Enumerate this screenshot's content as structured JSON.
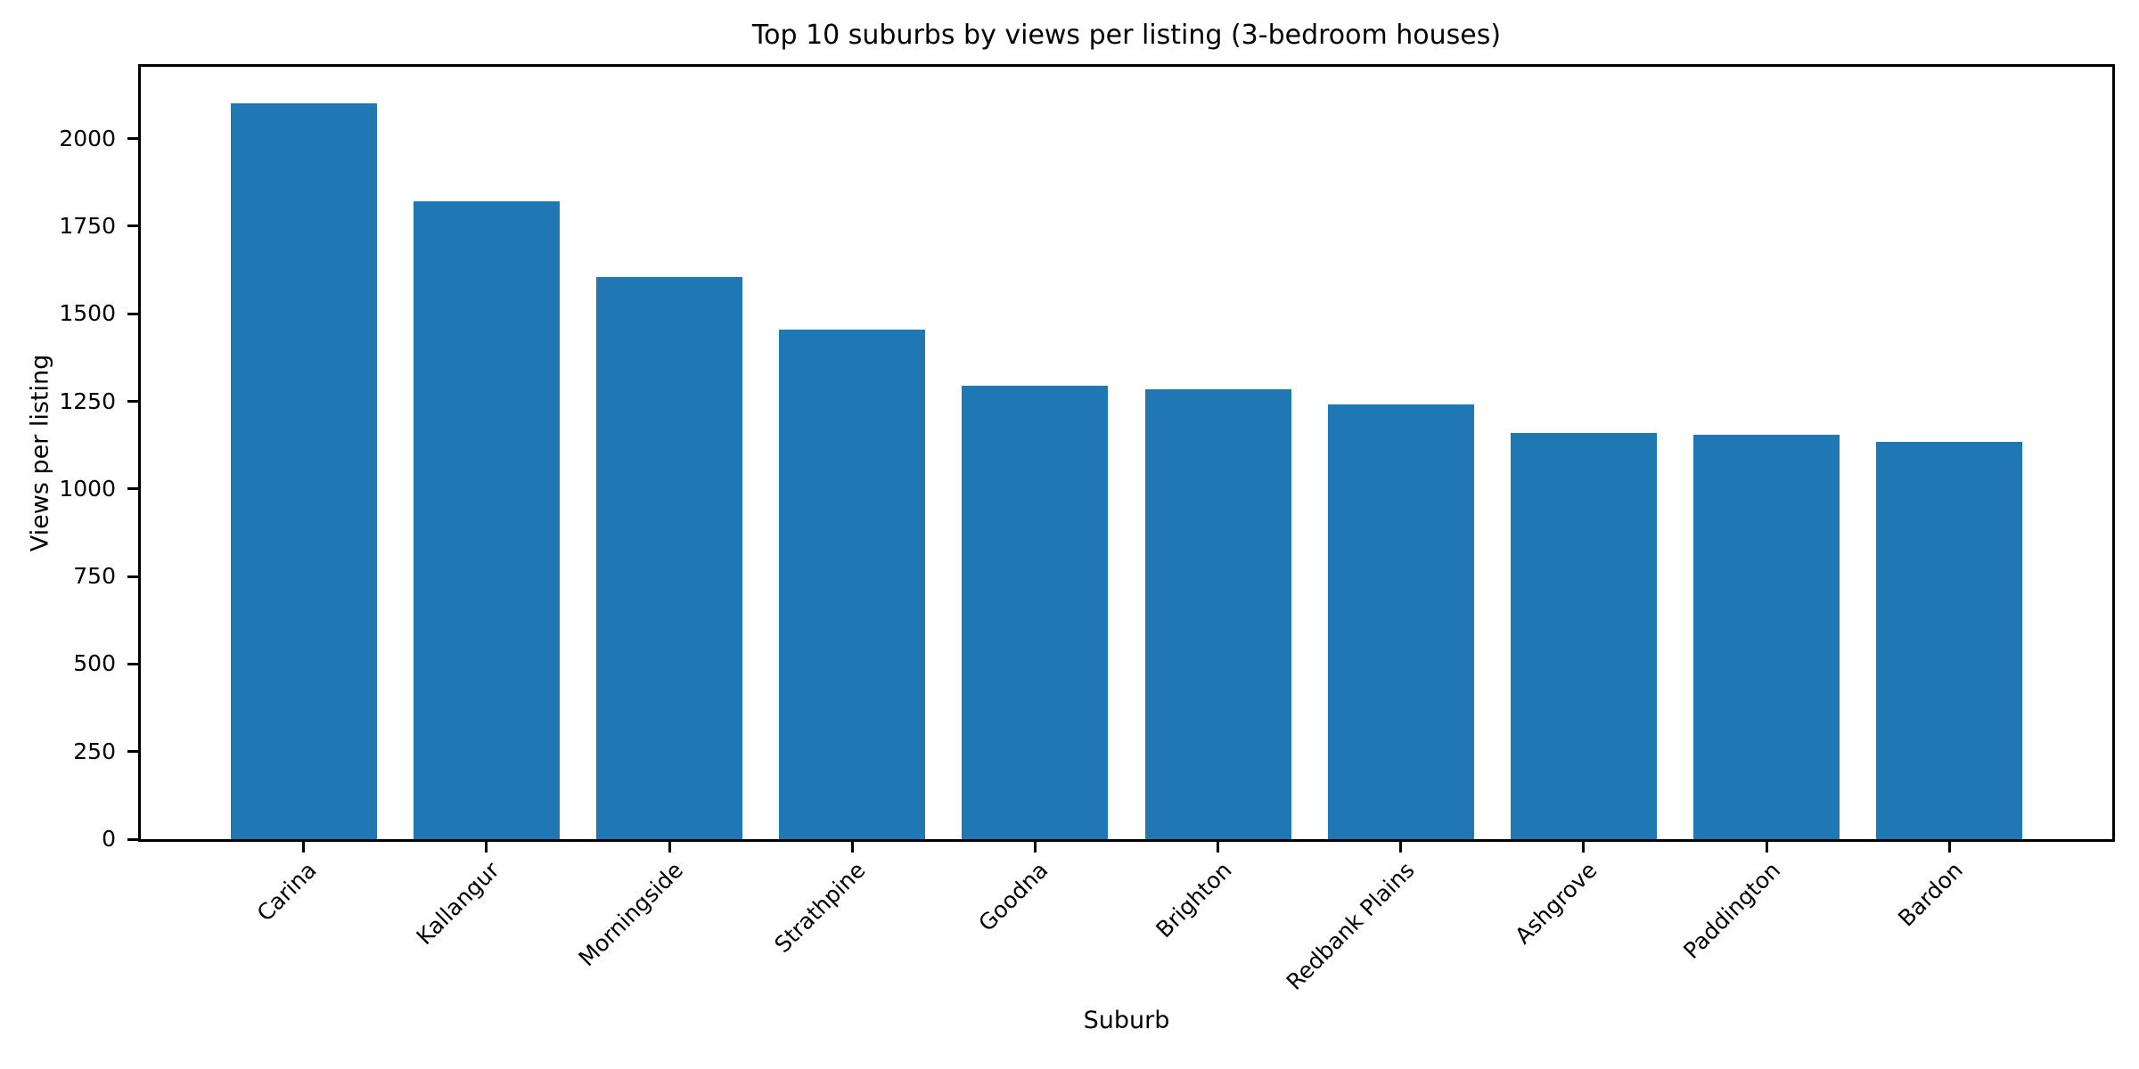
{
  "chart_data": {
    "type": "bar",
    "title": "Top 10 suburbs by views per listing (3-bedroom houses)",
    "xlabel": "Suburb",
    "ylabel": "Views per listing",
    "categories": [
      "Carina",
      "Kallangur",
      "Morningside",
      "Strathpine",
      "Goodna",
      "Brighton",
      "Redbank Plains",
      "Ashgrove",
      "Paddington",
      "Bardon"
    ],
    "values": [
      2100,
      1820,
      1605,
      1455,
      1295,
      1285,
      1240,
      1160,
      1155,
      1135
    ],
    "yticks": [
      0,
      250,
      500,
      750,
      1000,
      1250,
      1500,
      1750,
      2000
    ],
    "ylim": [
      0,
      2205
    ],
    "bar_color": "#1f77b4",
    "grid": false,
    "legend_position": "none"
  }
}
